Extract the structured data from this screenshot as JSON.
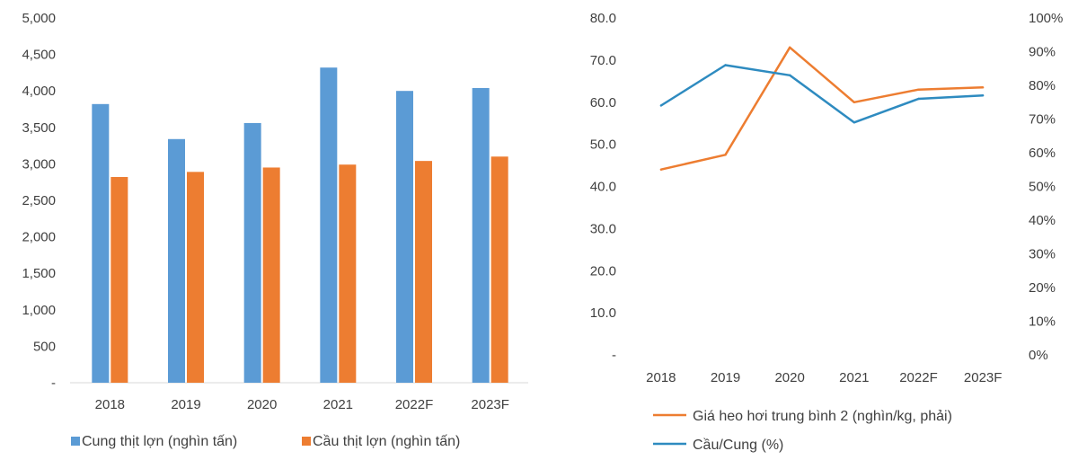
{
  "chart_data": [
    {
      "type": "bar",
      "categories": [
        "2018",
        "2019",
        "2020",
        "2021",
        "2022F",
        "2023F"
      ],
      "series": [
        {
          "name": "Cung thịt lợn (nghìn tấn)",
          "color": "#5B9BD5",
          "values": [
            3820,
            3340,
            3560,
            4320,
            4000,
            4040
          ]
        },
        {
          "name": "Cầu thịt lợn (nghìn tấn)",
          "color": "#ED7D31",
          "values": [
            2820,
            2890,
            2950,
            2990,
            3040,
            3100
          ]
        }
      ],
      "ylim": [
        0,
        5000
      ],
      "yticks": [
        0,
        500,
        1000,
        1500,
        2000,
        2500,
        3000,
        3500,
        4000,
        4500,
        5000
      ],
      "ytick_labels": [
        "-",
        "500",
        "1,000",
        "1,500",
        "2,000",
        "2,500",
        "3,000",
        "3,500",
        "4,000",
        "4,500",
        "5,000"
      ],
      "legend_position": "bottom"
    },
    {
      "type": "line",
      "categories": [
        "2018",
        "2019",
        "2020",
        "2021",
        "2022F",
        "2023F"
      ],
      "series": [
        {
          "name": "Giá heo hơi trung bình 2 (nghìn/kg, phải)",
          "color": "#ED7D31",
          "axis": "left",
          "values": [
            44.0,
            47.5,
            73.0,
            60.0,
            63.0,
            63.5
          ]
        },
        {
          "name": "Cầu/Cung (%)",
          "color": "#2E8BC0",
          "axis": "right",
          "values": [
            74,
            86,
            83,
            69,
            76,
            77
          ]
        }
      ],
      "ylim_left": [
        0,
        80
      ],
      "yticks_left": [
        0,
        10,
        20,
        30,
        40,
        50,
        60,
        70,
        80
      ],
      "ytick_labels_left": [
        "-",
        "10.0",
        "20.0",
        "30.0",
        "40.0",
        "50.0",
        "60.0",
        "70.0",
        "80.0"
      ],
      "ylim_right": [
        0,
        100
      ],
      "yticks_right": [
        0,
        10,
        20,
        30,
        40,
        50,
        60,
        70,
        80,
        90,
        100
      ],
      "ytick_labels_right": [
        "0%",
        "10%",
        "20%",
        "30%",
        "40%",
        "50%",
        "60%",
        "70%",
        "80%",
        "90%",
        "100%"
      ],
      "legend_position": "bottom"
    }
  ]
}
